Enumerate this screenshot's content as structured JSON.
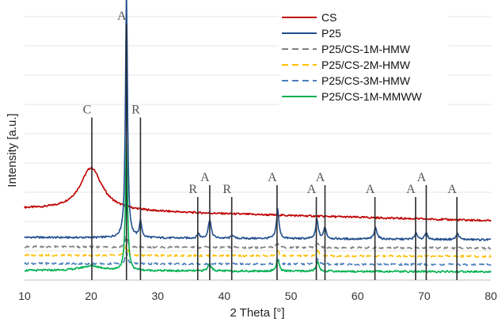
{
  "chart_data": {
    "type": "line",
    "title": "",
    "xlabel": "2 Theta [°]",
    "ylabel": "Intensity [a.u.]",
    "xlim": [
      10,
      80
    ],
    "xticks": [
      10,
      20,
      30,
      40,
      50,
      60,
      70,
      80
    ],
    "yticks_shown": false,
    "grid": "horizontal",
    "legend_position": "top-right",
    "series": [
      {
        "name": "CS",
        "color": "#c00000",
        "style": "solid",
        "baseline": 60,
        "baseline_end": 50,
        "peaks": [
          [
            20.0,
            36,
            2.0
          ]
        ]
      },
      {
        "name": "P25",
        "color": "#1f4e8c",
        "style": "solid",
        "baseline": 36,
        "baseline_end": 34,
        "peaks": [
          [
            25.3,
            210,
            0.18
          ],
          [
            27.4,
            14,
            0.2
          ],
          [
            36.1,
            4,
            0.2
          ],
          [
            37.8,
            16,
            0.25
          ],
          [
            41.2,
            3,
            0.2
          ],
          [
            48.0,
            25,
            0.22
          ],
          [
            53.9,
            16,
            0.22
          ],
          [
            55.1,
            10,
            0.22
          ],
          [
            62.7,
            10,
            0.25
          ],
          [
            68.8,
            5,
            0.25
          ],
          [
            70.3,
            5,
            0.25
          ],
          [
            75.0,
            5,
            0.25
          ]
        ]
      },
      {
        "name": "P25/CS-1M-HMW",
        "color": "#7f7f7f",
        "style": "dashed",
        "baseline": 28,
        "baseline_end": 27,
        "peaks": [
          [
            25.3,
            10,
            0.2
          ],
          [
            48.0,
            4,
            0.25
          ],
          [
            54.0,
            4,
            0.25
          ]
        ]
      },
      {
        "name": "P25/CS-2M-HMW",
        "color": "#ffc000",
        "style": "dashed",
        "baseline": 21,
        "baseline_end": 20,
        "peaks": [
          [
            25.3,
            10,
            0.2
          ],
          [
            48.0,
            4,
            0.25
          ],
          [
            54.0,
            4,
            0.25
          ]
        ]
      },
      {
        "name": "P25/CS-3M-HMW",
        "color": "#4a7ebb",
        "style": "dashed",
        "baseline": 14,
        "baseline_end": 13,
        "peaks": [
          [
            25.3,
            10,
            0.2
          ],
          [
            48.0,
            4,
            0.25
          ],
          [
            54.0,
            4,
            0.25
          ]
        ]
      },
      {
        "name": "P25/CS-1M-MMWW",
        "color": "#00b050",
        "style": "solid",
        "baseline": 8,
        "baseline_end": 7,
        "peaks": [
          [
            20.0,
            4,
            2.0
          ],
          [
            25.3,
            110,
            0.18
          ],
          [
            37.8,
            6,
            0.3
          ],
          [
            48.0,
            10,
            0.25
          ],
          [
            54.0,
            8,
            0.25
          ]
        ]
      }
    ],
    "reference_lines": [
      {
        "x": 20.1,
        "label": "C",
        "top": 137
      },
      {
        "x": 25.3,
        "label": "A",
        "top": 216
      },
      {
        "x": 27.4,
        "label": "R",
        "top": 137
      },
      {
        "x": 36.0,
        "label": "R",
        "top": 70
      },
      {
        "x": 37.8,
        "label": "A",
        "top": 80
      },
      {
        "x": 41.1,
        "label": "R",
        "top": 70
      },
      {
        "x": 47.9,
        "label": "A",
        "top": 80
      },
      {
        "x": 53.8,
        "label": "A",
        "top": 70
      },
      {
        "x": 55.1,
        "label": "A",
        "top": 80
      },
      {
        "x": 62.6,
        "label": "A",
        "top": 70
      },
      {
        "x": 68.7,
        "label": "A",
        "top": 70
      },
      {
        "x": 70.3,
        "label": "A",
        "top": 80
      },
      {
        "x": 74.9,
        "label": "A",
        "top": 70
      }
    ]
  }
}
